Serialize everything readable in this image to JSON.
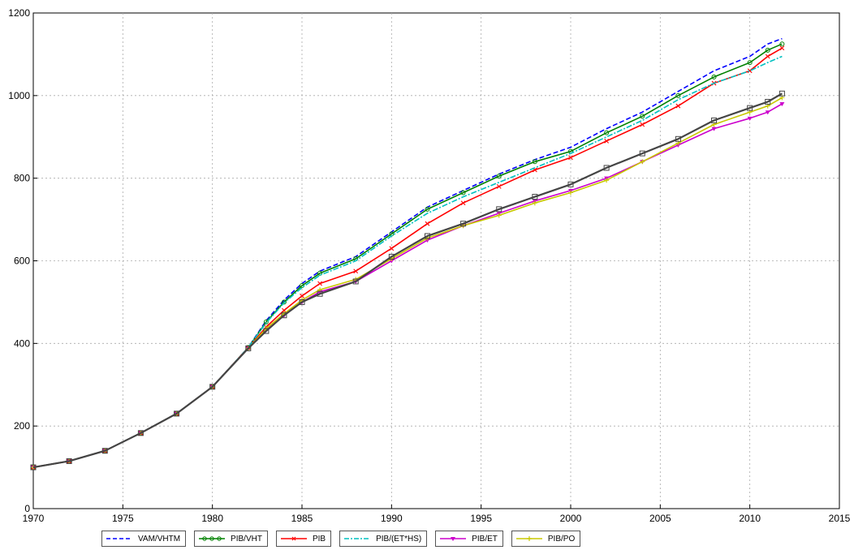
{
  "chart_data": {
    "type": "line",
    "title": "",
    "xlabel": "",
    "ylabel": "",
    "xlim": [
      1970,
      2015
    ],
    "ylim": [
      0,
      1200
    ],
    "xticks": [
      1970,
      1975,
      1980,
      1985,
      1990,
      1995,
      2000,
      2005,
      2010,
      2015
    ],
    "yticks": [
      0,
      200,
      400,
      600,
      800,
      1000,
      1200
    ],
    "grid": true,
    "legend_position": "bottom",
    "x": [
      1970,
      1972,
      1974,
      1976,
      1978,
      1980,
      1982,
      1983,
      1984,
      1985,
      1986,
      1988,
      1990,
      1992,
      1994,
      1996,
      1998,
      2000,
      2002,
      2004,
      2006,
      2008,
      2010,
      2011,
      2011.8
    ],
    "series": [
      {
        "name": "VAM/VHTM",
        "color": "#0000ff",
        "style": "dashed",
        "marker": "none",
        "values": [
          100,
          115,
          140,
          183,
          230,
          295,
          390,
          455,
          505,
          545,
          575,
          610,
          670,
          730,
          770,
          810,
          845,
          875,
          920,
          960,
          1010,
          1060,
          1095,
          1125,
          1138
        ]
      },
      {
        "name": "PIB/VHT",
        "color": "#008000",
        "style": "solid",
        "marker": "circle",
        "values": [
          100,
          115,
          140,
          183,
          230,
          295,
          390,
          452,
          500,
          540,
          570,
          605,
          665,
          725,
          765,
          805,
          840,
          865,
          910,
          950,
          1000,
          1045,
          1080,
          1110,
          1125
        ]
      },
      {
        "name": "PIB",
        "color": "#ff0000",
        "style": "solid",
        "marker": "x",
        "values": [
          100,
          115,
          140,
          183,
          230,
          295,
          390,
          440,
          480,
          515,
          545,
          575,
          630,
          690,
          740,
          780,
          820,
          850,
          890,
          930,
          975,
          1030,
          1060,
          1095,
          1115
        ]
      },
      {
        "name": "PIB/(ET*HS)",
        "color": "#00c0c0",
        "style": "dashdot",
        "marker": "none",
        "values": [
          100,
          115,
          140,
          183,
          230,
          295,
          390,
          450,
          498,
          535,
          565,
          600,
          660,
          715,
          755,
          790,
          825,
          860,
          900,
          940,
          990,
          1030,
          1060,
          1080,
          1095
        ]
      },
      {
        "name": "PIB/ET",
        "color": "#cc00cc",
        "style": "solid",
        "marker": "triangle-down",
        "values": [
          100,
          115,
          140,
          183,
          230,
          295,
          388,
          432,
          468,
          500,
          525,
          550,
          600,
          650,
          685,
          715,
          745,
          770,
          800,
          840,
          880,
          920,
          945,
          960,
          980
        ]
      },
      {
        "name": "PIB/PO",
        "color": "#c8c800",
        "style": "solid",
        "marker": "plus",
        "values": [
          100,
          115,
          140,
          183,
          230,
          295,
          388,
          436,
          472,
          505,
          530,
          555,
          605,
          655,
          685,
          710,
          740,
          765,
          795,
          840,
          885,
          930,
          960,
          975,
          995
        ]
      },
      {
        "name": "",
        "color": "#444444",
        "style": "solid",
        "marker": "square",
        "values": [
          100,
          115,
          140,
          183,
          230,
          295,
          388,
          430,
          468,
          500,
          520,
          550,
          610,
          660,
          690,
          725,
          755,
          785,
          825,
          860,
          895,
          940,
          970,
          985,
          1005
        ]
      }
    ]
  },
  "legend": {
    "entries": [
      {
        "label": "VAM/VHTM"
      },
      {
        "label": "PIB/VHT"
      },
      {
        "label": "PIB"
      },
      {
        "label": "PIB/(ET*HS)"
      },
      {
        "label": "PIB/ET"
      },
      {
        "label": "PIB/PO"
      }
    ]
  }
}
